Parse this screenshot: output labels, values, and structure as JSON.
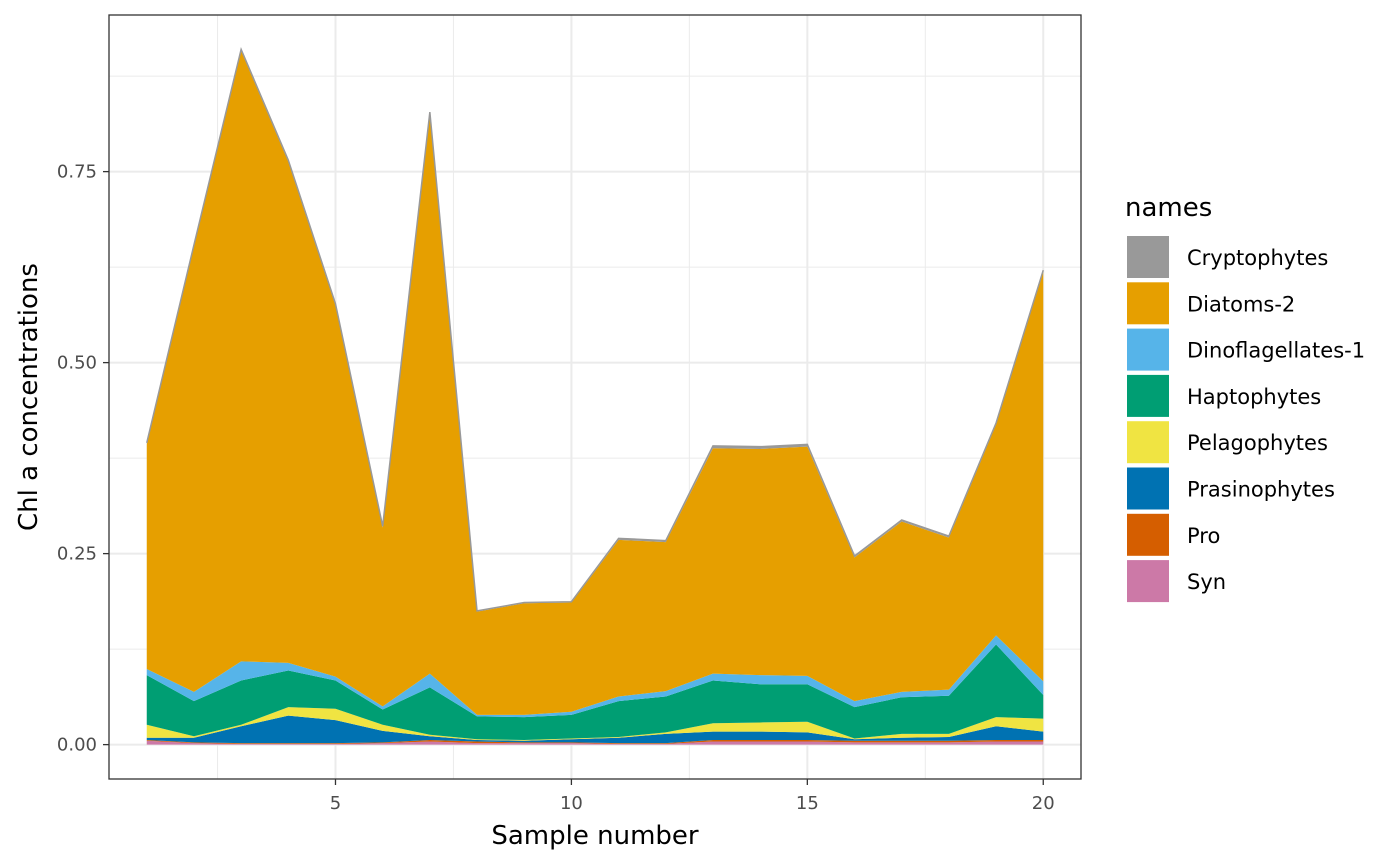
{
  "chart_data": {
    "type": "area",
    "stacked": true,
    "xlabel": "Sample number",
    "ylabel": "Chl a concentrations",
    "xlim": [
      0.2,
      20.8
    ],
    "ylim": [
      -0.045,
      0.955
    ],
    "x_ticks": [
      5,
      10,
      15,
      20
    ],
    "y_ticks": [
      0.0,
      0.25,
      0.5,
      0.75
    ],
    "y_tick_labels": [
      "0.00",
      "0.25",
      "0.50",
      "0.75"
    ],
    "x_minor_ticks": [
      2.5,
      7.5,
      12.5,
      17.5
    ],
    "y_minor_ticks": [
      0.125,
      0.375,
      0.625,
      0.875
    ],
    "grid": true,
    "legend_title": "names",
    "legend_position": "right",
    "x": [
      1,
      2,
      3,
      4,
      5,
      6,
      7,
      8,
      9,
      10,
      11,
      12,
      13,
      14,
      15,
      16,
      17,
      18,
      19,
      20
    ],
    "series": [
      {
        "name": "Cryptophytes",
        "color": "#999999",
        "values": [
          0.002,
          0.002,
          0.002,
          0.002,
          0.002,
          0.002,
          0.002,
          0.001,
          0.001,
          0.001,
          0.002,
          0.002,
          0.003,
          0.003,
          0.003,
          0.002,
          0.002,
          0.002,
          0.002,
          0.002
        ]
      },
      {
        "name": "Diatoms-2",
        "color": "#E69F00",
        "values": [
          0.294,
          0.583,
          0.799,
          0.656,
          0.486,
          0.234,
          0.733,
          0.135,
          0.146,
          0.143,
          0.205,
          0.195,
          0.295,
          0.296,
          0.3,
          0.188,
          0.223,
          0.199,
          0.276,
          0.536
        ]
      },
      {
        "name": "Dinoflagellates-1",
        "color": "#56B4E9",
        "values": [
          0.008,
          0.012,
          0.025,
          0.01,
          0.005,
          0.004,
          0.018,
          0.002,
          0.003,
          0.004,
          0.006,
          0.007,
          0.009,
          0.012,
          0.011,
          0.008,
          0.007,
          0.008,
          0.012,
          0.018
        ]
      },
      {
        "name": "Haptophytes",
        "color": "#009E73",
        "values": [
          0.065,
          0.046,
          0.058,
          0.048,
          0.037,
          0.02,
          0.062,
          0.03,
          0.03,
          0.031,
          0.047,
          0.047,
          0.056,
          0.05,
          0.049,
          0.041,
          0.048,
          0.05,
          0.095,
          0.031
        ]
      },
      {
        "name": "Pelagophytes",
        "color": "#F0E442",
        "values": [
          0.017,
          0.002,
          0.002,
          0.011,
          0.015,
          0.008,
          0.002,
          0.001,
          0.001,
          0.001,
          0.001,
          0.002,
          0.011,
          0.012,
          0.014,
          0.001,
          0.005,
          0.004,
          0.012,
          0.017
        ]
      },
      {
        "name": "Prasinophytes",
        "color": "#0072B2",
        "values": [
          0.003,
          0.006,
          0.022,
          0.036,
          0.03,
          0.015,
          0.005,
          0.002,
          0.002,
          0.004,
          0.007,
          0.012,
          0.011,
          0.011,
          0.01,
          0.002,
          0.004,
          0.005,
          0.018,
          0.011
        ]
      },
      {
        "name": "Pro",
        "color": "#D55E00",
        "values": [
          0.001,
          0.001,
          0.001,
          0.001,
          0.001,
          0.001,
          0.002,
          0.002,
          0.001,
          0.001,
          0.001,
          0.001,
          0.002,
          0.002,
          0.002,
          0.002,
          0.002,
          0.002,
          0.002,
          0.002
        ]
      },
      {
        "name": "Syn",
        "color": "#CC79A7",
        "values": [
          0.005,
          0.002,
          0.001,
          0.001,
          0.001,
          0.002,
          0.004,
          0.002,
          0.002,
          0.002,
          0.001,
          0.001,
          0.004,
          0.004,
          0.004,
          0.003,
          0.003,
          0.003,
          0.004,
          0.004
        ]
      }
    ]
  }
}
